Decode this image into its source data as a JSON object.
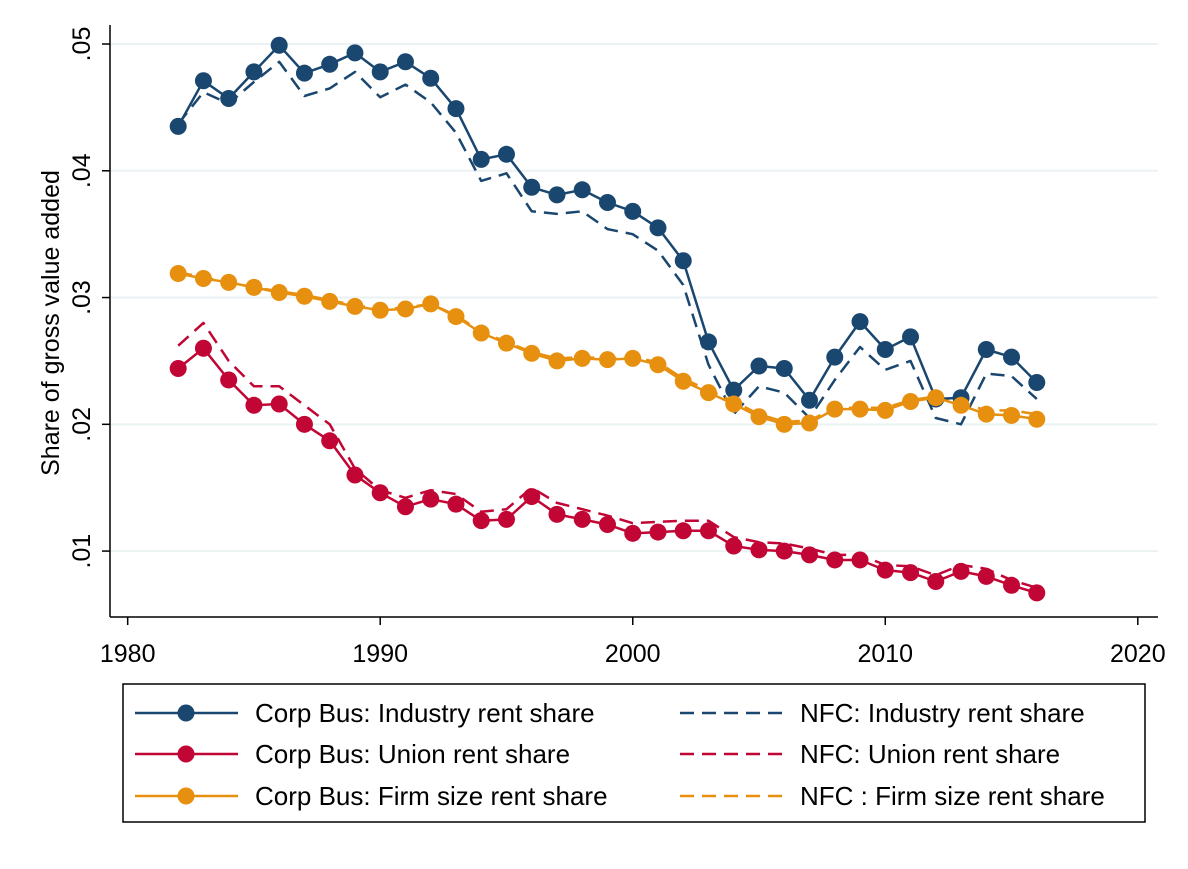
{
  "chart_data": {
    "type": "line",
    "title": "",
    "xlabel": "",
    "ylabel": "Share of gross value added",
    "xlim": [
      1979.3,
      2020.8
    ],
    "ylim": [
      0.0048,
      0.0515
    ],
    "xticks": [
      1980,
      1990,
      2000,
      2010,
      2020
    ],
    "xtick_labels": [
      "1980",
      "1990",
      "2000",
      "2010",
      "2020"
    ],
    "yticks": [
      0.01,
      0.02,
      0.03,
      0.04,
      0.05
    ],
    "ytick_labels": [
      ".01",
      ".02",
      ".03",
      ".04",
      ".05"
    ],
    "grid": "horizontal",
    "legend_position": "bottom",
    "x": [
      1982,
      1983,
      1984,
      1985,
      1986,
      1987,
      1988,
      1989,
      1990,
      1991,
      1992,
      1993,
      1994,
      1995,
      1996,
      1997,
      1998,
      1999,
      2000,
      2001,
      2002,
      2003,
      2004,
      2005,
      2006,
      2007,
      2008,
      2009,
      2010,
      2011,
      2012,
      2013,
      2014,
      2015,
      2016
    ],
    "series": [
      {
        "name": "Corp Bus: Industry rent share",
        "color": "#1a476f",
        "style": "solid-markers",
        "values": [
          0.0435,
          0.0471,
          0.0457,
          0.0478,
          0.0499,
          0.0477,
          0.0484,
          0.0493,
          0.0478,
          0.0486,
          0.0473,
          0.0449,
          0.0409,
          0.0413,
          0.0387,
          0.0381,
          0.0385,
          0.0375,
          0.0368,
          0.0355,
          0.0329,
          0.0265,
          0.0227,
          0.0246,
          0.0244,
          0.0219,
          0.0253,
          0.0281,
          0.0259,
          0.0269,
          0.022,
          0.0221,
          0.0259,
          0.0253,
          0.0233
        ]
      },
      {
        "name": "Corp Bus: Union rent share",
        "color": "#c10534",
        "style": "solid-markers",
        "values": [
          0.0244,
          0.026,
          0.0235,
          0.0215,
          0.0216,
          0.02,
          0.0187,
          0.016,
          0.0146,
          0.0135,
          0.0141,
          0.0137,
          0.0124,
          0.0125,
          0.0143,
          0.0129,
          0.0125,
          0.0121,
          0.0114,
          0.0115,
          0.0116,
          0.0116,
          0.0104,
          0.0101,
          0.01,
          0.0097,
          0.0093,
          0.0093,
          0.0085,
          0.0083,
          0.0076,
          0.0084,
          0.008,
          0.0073,
          0.0067
        ]
      },
      {
        "name": "Corp Bus: Firm size rent share",
        "color": "#e7900f",
        "style": "solid-markers",
        "values": [
          0.0319,
          0.0315,
          0.0312,
          0.0308,
          0.0304,
          0.0301,
          0.0297,
          0.0293,
          0.029,
          0.0291,
          0.0295,
          0.0285,
          0.0272,
          0.0264,
          0.0256,
          0.025,
          0.0252,
          0.0251,
          0.0252,
          0.0247,
          0.0234,
          0.0225,
          0.0216,
          0.0206,
          0.02,
          0.0201,
          0.0212,
          0.0212,
          0.0211,
          0.0218,
          0.0221,
          0.0215,
          0.0208,
          0.0207,
          0.0204
        ]
      },
      {
        "name": "NFC: Industry rent share",
        "color": "#1a476f",
        "style": "dashed",
        "values": [
          0.0437,
          0.0462,
          0.0453,
          0.047,
          0.0486,
          0.0459,
          0.0465,
          0.0478,
          0.0458,
          0.0468,
          0.0454,
          0.043,
          0.0392,
          0.0398,
          0.0368,
          0.0366,
          0.0368,
          0.0354,
          0.035,
          0.0337,
          0.031,
          0.0247,
          0.0208,
          0.023,
          0.0225,
          0.0205,
          0.0235,
          0.0261,
          0.0243,
          0.025,
          0.0205,
          0.02,
          0.024,
          0.0238,
          0.022
        ]
      },
      {
        "name": "NFC: Union rent share",
        "color": "#c10534",
        "style": "dashed",
        "values": [
          0.0262,
          0.028,
          0.025,
          0.023,
          0.023,
          0.0215,
          0.02,
          0.0165,
          0.0148,
          0.0142,
          0.0148,
          0.0145,
          0.0131,
          0.0133,
          0.015,
          0.0138,
          0.0133,
          0.0128,
          0.0122,
          0.0123,
          0.0124,
          0.0124,
          0.0111,
          0.0107,
          0.0106,
          0.0102,
          0.0097,
          0.0097,
          0.0089,
          0.0088,
          0.0081,
          0.0089,
          0.0086,
          0.0077,
          0.0071
        ]
      },
      {
        "name": "NFC : Firm size rent share",
        "color": "#e7900f",
        "style": "dashed",
        "values": [
          0.032,
          0.0316,
          0.0312,
          0.0308,
          0.0305,
          0.0302,
          0.0298,
          0.0294,
          0.0291,
          0.0292,
          0.0295,
          0.0286,
          0.0273,
          0.0265,
          0.0257,
          0.0252,
          0.0253,
          0.0252,
          0.0253,
          0.0249,
          0.0236,
          0.0227,
          0.0218,
          0.0208,
          0.0202,
          0.0203,
          0.0213,
          0.0213,
          0.0213,
          0.0219,
          0.0222,
          0.0217,
          0.0211,
          0.0211,
          0.0208
        ]
      }
    ],
    "legend": {
      "columns": 2,
      "order": [
        0,
        3,
        1,
        4,
        2,
        5
      ]
    }
  }
}
